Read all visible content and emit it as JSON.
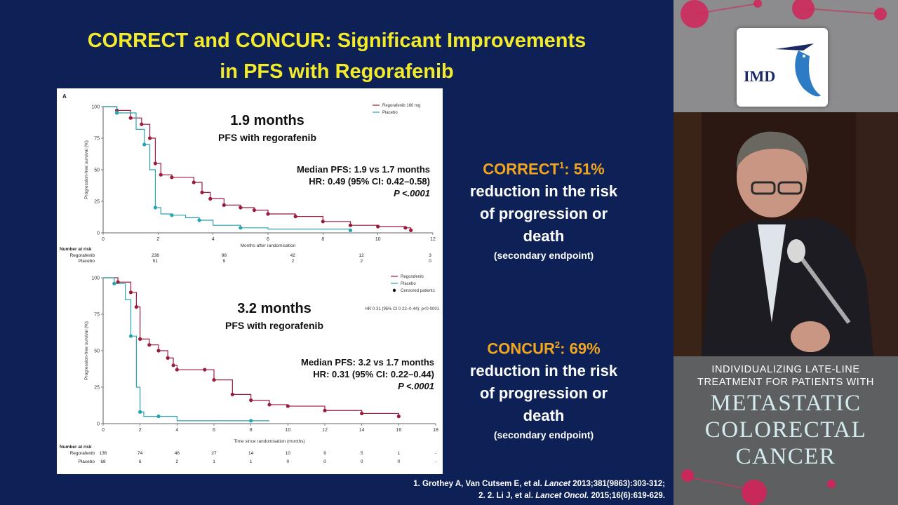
{
  "slide": {
    "title_line1": "CORRECT and CONCUR: Significant Improvements",
    "title_line2": "in PFS with Regorafenib"
  },
  "correct_block": {
    "name": "CORRECT",
    "sup": "1",
    "pct": ": 51%",
    "line2": "reduction in the risk",
    "line3": "of progression or",
    "line4": "death",
    "note": "(secondary endpoint)"
  },
  "concur_block": {
    "name": "CONCUR",
    "sup": "2",
    "pct": ": 69%",
    "line2": "reduction in the risk",
    "line3": "of progression or",
    "line4": "death",
    "note": "(secondary endpoint)"
  },
  "references": {
    "ref1_pre": "1.   Grothey A, Van Cutsem E, et al. ",
    "ref1_journal": "Lancet",
    "ref1_post": " 2013;381(9863):303-312;",
    "ref2_pre": "2.   2. Li J, et al. ",
    "ref2_journal": "Lancet Oncol.",
    "ref2_post": " 2015;16(6):619-629."
  },
  "sidebar": {
    "logo_text": "IMD",
    "banner_small_1": "INDIVIDUALIZING LATE-LINE",
    "banner_small_2": "TREATMENT FOR PATIENTS WITH",
    "banner_big_1": "Metastatic",
    "banner_big_2": "Colorectal",
    "banner_big_3": "Cancer"
  },
  "colors": {
    "regorafenib": "#9b1b3c",
    "placebo": "#2aa3b0",
    "accent_title": "#f2ea2a",
    "accent_orange": "#f3a51d"
  },
  "chart_data": [
    {
      "type": "line",
      "panel": "A",
      "title": "1.9 months",
      "subtitle": "PFS with regorafenib",
      "ylabel": "Progression-free survival (%)",
      "xlabel": "Months after randomisation",
      "xlim": [
        0,
        12
      ],
      "ylim": [
        0,
        100
      ],
      "x_ticks": [
        "0",
        "2",
        "4",
        "6",
        "8",
        "10",
        "12"
      ],
      "y_ticks": [
        "0",
        "25",
        "50",
        "75",
        "100"
      ],
      "legend": [
        "Regorafenib 160 mg",
        "Placebo"
      ],
      "stats": {
        "median": "Median PFS: 1.9 vs 1.7 months",
        "hr": "HR: 0.49 (95% CI: 0.42–0.58)",
        "p": "P <.0001"
      },
      "series": [
        {
          "name": "Regorafenib 160 mg",
          "x": [
            0,
            0.5,
            1.0,
            1.4,
            1.7,
            1.9,
            2.1,
            2.5,
            3.3,
            3.6,
            3.9,
            4.4,
            5.0,
            5.5,
            6.0,
            7.0,
            8.0,
            9.0,
            10.0,
            11.0,
            11.2
          ],
          "y": [
            100,
            97,
            91,
            86,
            75,
            55,
            46,
            44,
            40,
            32,
            27,
            22,
            20,
            18,
            15,
            13,
            9,
            6,
            5,
            4,
            2
          ]
        },
        {
          "name": "Placebo",
          "x": [
            0,
            0.5,
            1.2,
            1.5,
            1.7,
            1.9,
            2.1,
            2.5,
            3.0,
            3.5,
            4.0,
            5.0,
            6.0,
            9.0
          ],
          "y": [
            100,
            95,
            82,
            70,
            50,
            20,
            15,
            14,
            12,
            10,
            6,
            4,
            3,
            2
          ]
        }
      ],
      "risk_table": {
        "header": "Number at risk",
        "rows": [
          {
            "label": "Regorafenib",
            "values": [
              "238",
              "98",
              "42",
              "12",
              "3"
            ]
          },
          {
            "label": "Placebo",
            "values": [
              "51",
              "9",
              "2",
              "2",
              "0"
            ]
          }
        ]
      }
    },
    {
      "type": "line",
      "panel": "B",
      "title": "3.2 months",
      "subtitle": "PFS with regorafenib",
      "ylabel": "Progression-free survival (%)",
      "xlabel": "Time since randomisation (months)",
      "xlim": [
        0,
        18
      ],
      "ylim": [
        0,
        100
      ],
      "x_ticks": [
        "0",
        "2",
        "4",
        "6",
        "8",
        "10",
        "12",
        "14",
        "16",
        "18"
      ],
      "y_ticks": [
        "0",
        "25",
        "50",
        "75",
        "100"
      ],
      "legend": [
        "Regorafenib",
        "Placebo",
        "Censored patients"
      ],
      "hr_small": "HR 0·31 (95% CI 0·22–0·44); p<0·0001",
      "stats": {
        "median": "Median PFS: 3.2 vs 1.7 months",
        "hr": "HR: 0.31 (95% CI: 0.22–0.44)",
        "p": "P <.0001"
      },
      "series": [
        {
          "name": "Regorafenib",
          "x": [
            0,
            0.8,
            1.5,
            1.8,
            2.0,
            2.5,
            3.0,
            3.5,
            3.8,
            4.0,
            5.5,
            6.0,
            7.0,
            8.0,
            9.0,
            10.0,
            12.0,
            14.0,
            16.0
          ],
          "y": [
            100,
            97,
            90,
            80,
            58,
            54,
            50,
            45,
            40,
            37,
            37,
            30,
            20,
            16,
            13,
            12,
            9,
            7,
            5
          ]
        },
        {
          "name": "Placebo",
          "x": [
            0,
            0.6,
            1.2,
            1.5,
            1.8,
            2.0,
            2.2,
            3.0,
            4.0,
            8.0,
            9.0
          ],
          "y": [
            100,
            96,
            85,
            60,
            25,
            8,
            5,
            5,
            2,
            2,
            2
          ]
        }
      ],
      "risk_table": {
        "header": "Number at risk",
        "rows": [
          {
            "label": "Regorafenib",
            "values": [
              "136",
              "74",
              "46",
              "27",
              "14",
              "10",
              "9",
              "5",
              "1",
              "-"
            ]
          },
          {
            "label": "Placebo",
            "values": [
              "68",
              "6",
              "2",
              "1",
              "1",
              "0",
              "0",
              "0",
              "0",
              "-"
            ]
          }
        ]
      }
    }
  ]
}
